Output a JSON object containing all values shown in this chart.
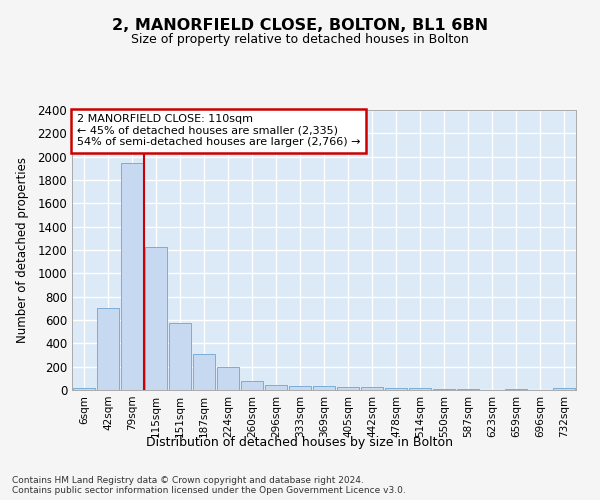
{
  "title": "2, MANORFIELD CLOSE, BOLTON, BL1 6BN",
  "subtitle": "Size of property relative to detached houses in Bolton",
  "xlabel": "Distribution of detached houses by size in Bolton",
  "ylabel": "Number of detached properties",
  "bar_color": "#c6d9f0",
  "bar_edge_color": "#7aadd8",
  "bg_color": "#dce9f7",
  "grid_color": "#ffffff",
  "categories": [
    "6sqm",
    "42sqm",
    "79sqm",
    "115sqm",
    "151sqm",
    "187sqm",
    "224sqm",
    "260sqm",
    "296sqm",
    "333sqm",
    "369sqm",
    "405sqm",
    "442sqm",
    "478sqm",
    "514sqm",
    "550sqm",
    "587sqm",
    "623sqm",
    "659sqm",
    "696sqm",
    "732sqm"
  ],
  "values": [
    15,
    700,
    1950,
    1225,
    575,
    305,
    200,
    80,
    45,
    37,
    35,
    30,
    28,
    15,
    20,
    5,
    8,
    3,
    5,
    3,
    20
  ],
  "ylim": [
    0,
    2400
  ],
  "yticks": [
    0,
    200,
    400,
    600,
    800,
    1000,
    1200,
    1400,
    1600,
    1800,
    2000,
    2200,
    2400
  ],
  "vline_x_index": 2.5,
  "annotation_line1": "2 MANORFIELD CLOSE: 110sqm",
  "annotation_line2": "← 45% of detached houses are smaller (2,335)",
  "annotation_line3": "54% of semi-detached houses are larger (2,766) →",
  "annotation_box_color": "#cc0000",
  "footer_line1": "Contains HM Land Registry data © Crown copyright and database right 2024.",
  "footer_line2": "Contains public sector information licensed under the Open Government Licence v3.0.",
  "fig_bg": "#f5f5f5"
}
